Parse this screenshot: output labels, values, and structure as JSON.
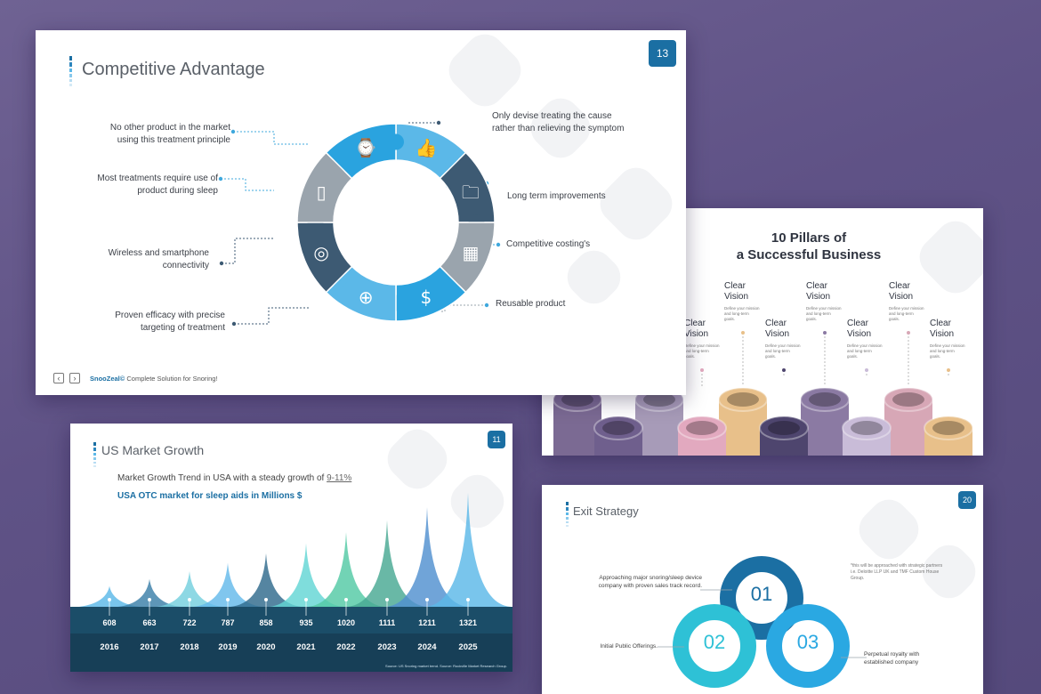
{
  "colors": {
    "bg": "#62558a",
    "primary_blue": "#1b6fa3",
    "light_blue": "#5bb8e8",
    "dark_slate": "#3d5a73",
    "grey": "#9aa4ad"
  },
  "slide1": {
    "badge": "13",
    "title": "Competitive Advantage",
    "left_labels": [
      "No other product in the market using this treatment principle",
      "Most treatments require use of product during sleep",
      "Wireless and smartphone connectivity",
      "Proven efficacy with precise targeting of treatment"
    ],
    "right_labels": [
      "Only devise treating the cause rather than relieving the symptom",
      "Long term improvements",
      "Competitive costing's",
      "Reusable product"
    ],
    "icons": [
      "thumbs-up-icon",
      "folder-plus-icon",
      "calendar-icon",
      "money-icon",
      "globe-icon",
      "target-icon",
      "smartphone-icon",
      "watch-icon"
    ],
    "footer_brand": "SnooZeal©",
    "footer_text": "Complete Solution for Snoring!"
  },
  "slide2": {
    "title_line1": "10 Pillars of",
    "title_line2": "a Successful Business",
    "column_title": "Clear Vision",
    "column_title_line1": "Clear",
    "column_title_line2": "Vision",
    "column_title_partial": "Clear",
    "column_title_partial_line2": "Vision",
    "column_desc": "Define your mission and long-term goals."
  },
  "slide3": {
    "badge": "11",
    "title": "US Market Growth",
    "subtitle_prefix": "Market Growth Trend in USA with a steady growth of",
    "subtitle_highlight": "9-11%",
    "subheading": "USA OTC market for sleep aids in Millions $",
    "source": "Source: US Snoring market trend. Source: Rockville Market Research Group.",
    "chart_data": {
      "type": "area",
      "title": "USA OTC market for sleep aids in Millions $",
      "categories": [
        "2016",
        "2017",
        "2018",
        "2019",
        "2020",
        "2021",
        "2022",
        "2023",
        "2024",
        "2025"
      ],
      "values": [
        608,
        663,
        722,
        787,
        858,
        935,
        1020,
        1111,
        1211,
        1321
      ],
      "value_labels": [
        "608",
        "663",
        "722",
        "787",
        "858",
        "935",
        "1020",
        "1111",
        "1211",
        "1321"
      ],
      "ylabel": "Millions $",
      "ylim": [
        0,
        1321
      ]
    }
  },
  "slide4": {
    "badge": "20",
    "title": "Exit Strategy",
    "steps": [
      "01",
      "02",
      "03"
    ],
    "label1": "Approaching major snoring/sleep device company with proven sales track record.",
    "label2": "Initial Public Offerings.",
    "label3": "Perpetual royalty with established company",
    "note": "*this will be approached with strategic partners i.e. Deloitte LLP UK and TMF Custom House Group."
  }
}
